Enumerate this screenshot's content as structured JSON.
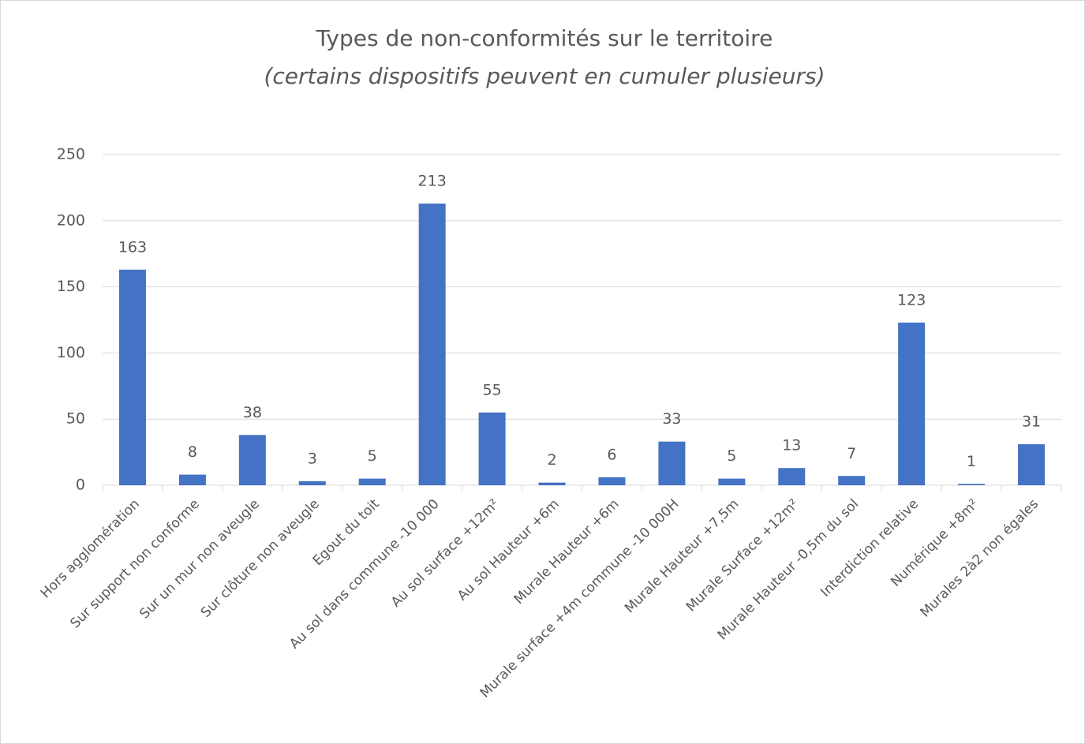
{
  "chart_data": {
    "type": "bar",
    "title": "Types de non-conformités sur le territoire",
    "subtitle": "(certains dispositifs peuvent en cumuler plusieurs)",
    "categories": [
      "Hors agglomération",
      "Sur support non conforme",
      "Sur un mur non aveugle",
      "Sur clôture non aveugle",
      "Egout du toit",
      "Au sol dans commune -10 000",
      "Au sol surface +12m²",
      "Au sol Hauteur +6m",
      "Murale Hauteur +6m",
      "Murale surface +4m commune -10 000H",
      "Murale Hauteur +7,5m",
      "Murale Surface +12m²",
      "Murale Hauteur -0,5m du sol",
      "Interdiction relative",
      "Numérique +8m²",
      "Murales 2à2 non égales"
    ],
    "values": [
      163,
      8,
      38,
      3,
      5,
      213,
      55,
      2,
      6,
      33,
      5,
      13,
      7,
      123,
      1,
      31
    ],
    "color": "#4472c4",
    "ylim": [
      0,
      250
    ],
    "yticks": [
      0,
      50,
      100,
      150,
      200,
      250
    ],
    "grid": true
  }
}
